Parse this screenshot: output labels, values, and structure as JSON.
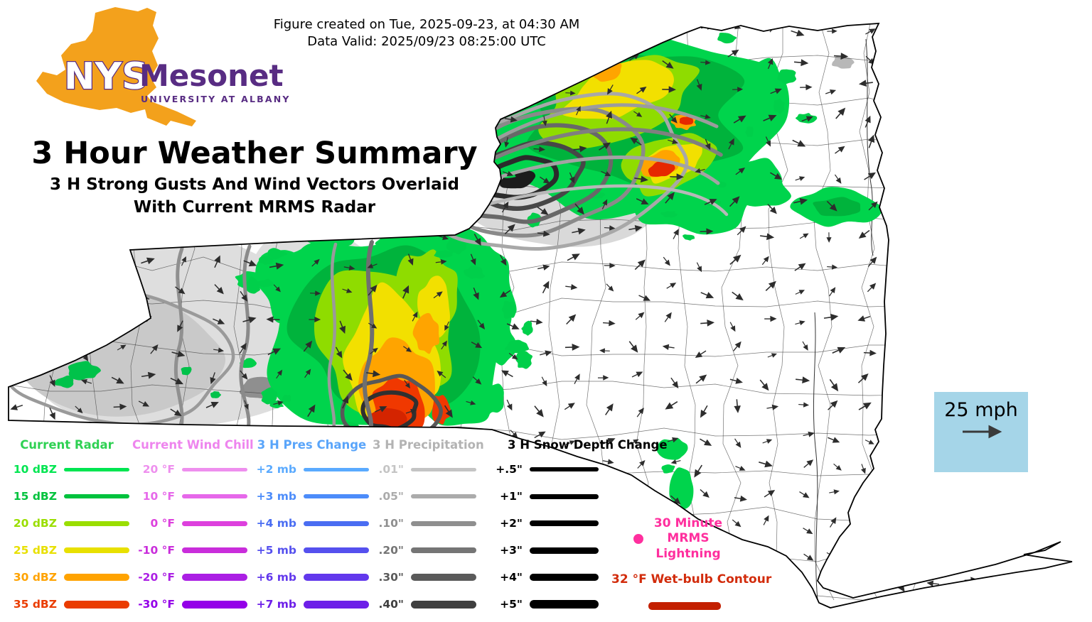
{
  "header": {
    "created": "Figure created on Tue, 2025-09-23, at 04:30 AM",
    "valid": "Data Valid: 2025/09/23 08:25:00 UTC"
  },
  "logo": {
    "acronym": "NYS",
    "name": "Mesonet",
    "affiliation": "UNIVERSITY AT ALBANY",
    "orange": "#f3a11c",
    "purple": "#582c83"
  },
  "title": {
    "main": "3 Hour Weather Summary",
    "subtitle_line1": "3 H Strong Gusts And Wind Vectors Overlaid",
    "subtitle_line2": "With Current MRMS Radar"
  },
  "wind_scale": {
    "label": "25 mph",
    "box_color": "#a5d5e8"
  },
  "legend": {
    "columns": [
      {
        "id": "radar",
        "title": "Current Radar",
        "title_color": "#2fd153",
        "items": [
          {
            "label": "10 dBZ",
            "color": "#00e551",
            "thickness": 5
          },
          {
            "label": "15 dBZ",
            "color": "#00c23d",
            "thickness": 6
          },
          {
            "label": "20 dBZ",
            "color": "#9ade00",
            "thickness": 7
          },
          {
            "label": "25 dBZ",
            "color": "#e8e000",
            "thickness": 8
          },
          {
            "label": "30 dBZ",
            "color": "#ffa300",
            "thickness": 10
          },
          {
            "label": "35 dBZ",
            "color": "#ea3c00",
            "thickness": 11
          }
        ]
      },
      {
        "id": "wind-chill",
        "title": "Current Wind Chill",
        "title_color": "#ee85ee",
        "items": [
          {
            "label": "20 °F",
            "color": "#ee8fee",
            "thickness": 5
          },
          {
            "label": "10 °F",
            "color": "#e668ea",
            "thickness": 6
          },
          {
            "label": "0 °F",
            "color": "#dd40dd",
            "thickness": 7
          },
          {
            "label": "-10 °F",
            "color": "#c92ddb",
            "thickness": 8
          },
          {
            "label": "-20 °F",
            "color": "#ab1fe4",
            "thickness": 10
          },
          {
            "label": "-30 °F",
            "color": "#9400e8",
            "thickness": 11
          }
        ]
      },
      {
        "id": "pressure-change",
        "title": "3 H Pres Change",
        "title_color": "#5aa5fa",
        "items": [
          {
            "label": "+2 mb",
            "color": "#5aaaff",
            "thickness": 5
          },
          {
            "label": "+3 mb",
            "color": "#4c8cfa",
            "thickness": 6
          },
          {
            "label": "+4 mb",
            "color": "#4a6df2",
            "thickness": 7
          },
          {
            "label": "+5 mb",
            "color": "#5550ee",
            "thickness": 8
          },
          {
            "label": "+6 mb",
            "color": "#6238ec",
            "thickness": 10
          },
          {
            "label": "+7 mb",
            "color": "#6d1fe8",
            "thickness": 11
          }
        ]
      },
      {
        "id": "precipitation",
        "title": "3 H Precipitation",
        "title_color": "#b3b3b3",
        "items": [
          {
            "label": ".01\"",
            "color": "#c4c4c4",
            "thickness": 5
          },
          {
            "label": ".05\"",
            "color": "#ababab",
            "thickness": 6
          },
          {
            "label": ".10\"",
            "color": "#8f8f8f",
            "thickness": 7
          },
          {
            "label": ".20\"",
            "color": "#757575",
            "thickness": 8
          },
          {
            "label": ".30\"",
            "color": "#5a5a5a",
            "thickness": 10
          },
          {
            "label": ".40\"",
            "color": "#3f3f3f",
            "thickness": 11
          }
        ]
      },
      {
        "id": "snow-depth-change",
        "title": "3 H Snow Depth Change",
        "title_color": "#000000",
        "items": [
          {
            "label": "+.5\"",
            "color": "#000000",
            "thickness": 6
          },
          {
            "label": "+1\"",
            "color": "#000000",
            "thickness": 7
          },
          {
            "label": "+2\"",
            "color": "#000000",
            "thickness": 8
          },
          {
            "label": "+3\"",
            "color": "#000000",
            "thickness": 9
          },
          {
            "label": "+4\"",
            "color": "#000000",
            "thickness": 10
          },
          {
            "label": "+5\"",
            "color": "#000000",
            "thickness": 12
          }
        ]
      }
    ],
    "lightning": {
      "label": "30 Minute MRMS Lightning",
      "color": "#ff2f9e"
    },
    "wet_bulb": {
      "label": "32 °F Wet-bulb Contour",
      "color": "#d22c0c",
      "line_color": "#c32000"
    }
  }
}
